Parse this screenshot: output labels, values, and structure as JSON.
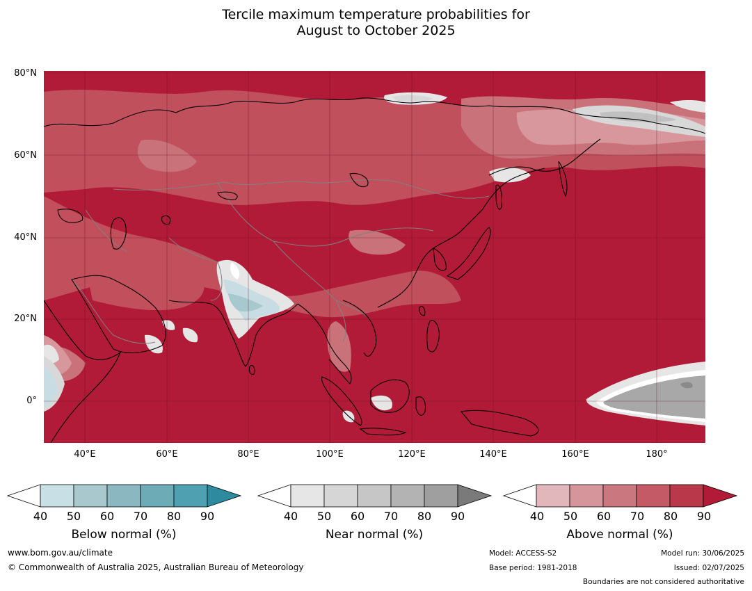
{
  "title": {
    "line1": "Tercile maximum temperature probabilities for",
    "line2": "August to October 2025"
  },
  "map": {
    "lat_labels": [
      "80°N",
      "60°N",
      "40°N",
      "20°N",
      "0°"
    ],
    "lon_labels": [
      "40°E",
      "60°E",
      "80°E",
      "100°E",
      "120°E",
      "140°E",
      "160°E",
      "180°"
    ],
    "colors": {
      "above_90": "#b21b37",
      "above_80": "#b93147",
      "above_70": "#c2535f",
      "above_60": "#c9727a",
      "above_50": "#d7979c",
      "above_40": "#e2b7bb",
      "below_50": "#c8dde3",
      "below_60": "#a8c8cf",
      "near_50": "#e6e6e6",
      "near_60": "#d8d8d8",
      "near_80": "#a8a8a8",
      "near_90": "#8a8a8a",
      "coast": "#000000",
      "border": "#808080"
    }
  },
  "legends": [
    {
      "caption": "Below normal (%)",
      "ticks": [
        "40",
        "50",
        "60",
        "70",
        "80",
        "90"
      ],
      "colors": [
        "#c8dfe5",
        "#a8c8cd",
        "#8ab7c0",
        "#6dabb7",
        "#4fa1b1",
        "#2e8a9e"
      ]
    },
    {
      "caption": "Near normal (%)",
      "ticks": [
        "40",
        "50",
        "60",
        "70",
        "80",
        "90"
      ],
      "colors": [
        "#e6e6e6",
        "#d6d6d6",
        "#c6c6c6",
        "#b3b3b3",
        "#9f9f9f",
        "#7a7a7a"
      ]
    },
    {
      "caption": "Above normal (%)",
      "ticks": [
        "40",
        "50",
        "60",
        "70",
        "80",
        "90"
      ],
      "colors": [
        "#e2b7bb",
        "#d6959b",
        "#cb7780",
        "#c35a66",
        "#b9384a",
        "#b21b37"
      ]
    }
  ],
  "footer": {
    "url": "www.bom.gov.au/climate",
    "copyright": "© Commonwealth of Australia 2025, Australian Bureau of Meteorology",
    "model": "Model: ACCESS-S2",
    "base_period": "Base period: 1981-2018",
    "model_run": "Model run: 30/06/2025",
    "issued": "Issued: 02/07/2025",
    "disclaimer": "Boundaries are not considered authoritative"
  }
}
